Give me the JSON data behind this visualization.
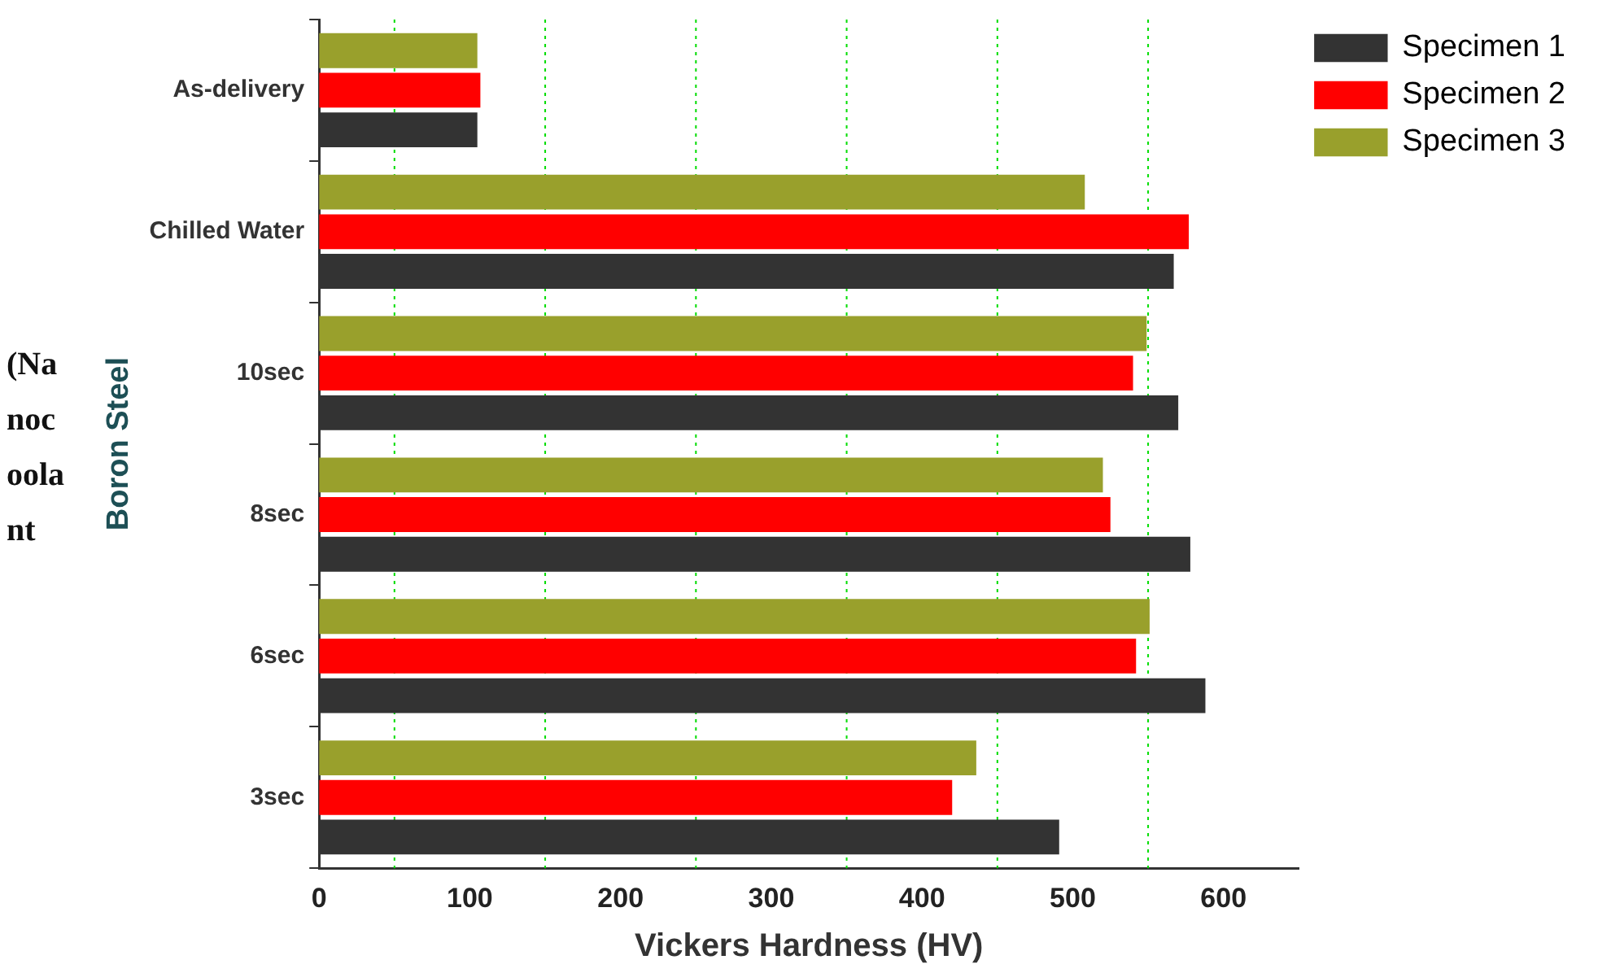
{
  "chart_data": {
    "type": "bar",
    "orientation": "horizontal",
    "xlabel": "Vickers Hardness (HV)",
    "ylabel": "Boron Steel",
    "categories": [
      "As-delivery",
      "Chilled Water",
      "10sec",
      "8sec",
      "6sec",
      "3sec"
    ],
    "series": [
      {
        "name": "Specimen 1",
        "color": "#333333",
        "values": [
          105,
          567,
          570,
          578,
          588,
          491
        ]
      },
      {
        "name": "Specimen 2",
        "color": "#ff0000",
        "values": [
          107,
          577,
          540,
          525,
          542,
          420
        ]
      },
      {
        "name": "Specimen 3",
        "color": "#99a02c",
        "values": [
          105,
          508,
          549,
          520,
          551,
          436
        ]
      }
    ],
    "xlim": [
      0,
      650
    ],
    "xticks": [
      0,
      100,
      200,
      300,
      400,
      500,
      600
    ],
    "ref_lines": [
      {
        "axis": "x",
        "value": 50,
        "color": "#00dd00",
        "line_style": "dotted"
      },
      {
        "axis": "x",
        "value": 150,
        "color": "#00dd00",
        "line_style": "dotted"
      },
      {
        "axis": "x",
        "value": 250,
        "color": "#00dd00",
        "line_style": "dotted"
      },
      {
        "axis": "x",
        "value": 350,
        "color": "#00dd00",
        "line_style": "dotted"
      },
      {
        "axis": "x",
        "value": 450,
        "color": "#00dd00",
        "line_style": "dotted"
      },
      {
        "axis": "x",
        "value": 550,
        "color": "#00dd00",
        "line_style": "dotted"
      }
    ],
    "annotations": [
      "(Nanocoolant"
    ],
    "legend": "top right",
    "grid": false
  }
}
